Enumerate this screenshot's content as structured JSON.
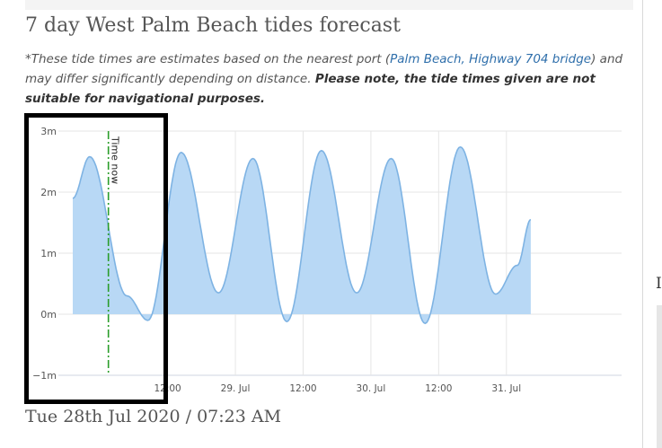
{
  "title": "7 day West Palm Beach tides forecast",
  "note": {
    "intro": "*These tide times are estimates based on the nearest port (",
    "link": "Palm Beach, Highway 704 bridge",
    "middle": ") and may differ significantly depending on distance. ",
    "warning": "Please note, the tide times given are not suitable for navigational purposes."
  },
  "colors": {
    "area_fill": "#b8d8f5",
    "area_line": "#7eb3e3",
    "now_line": "#2a9d2a",
    "grid": "#e6e6e6",
    "highlight_border": "#000000"
  },
  "chart_data": {
    "type": "area",
    "ylabel": "",
    "ylim": [
      -1,
      3
    ],
    "yticks": [
      {
        "value": 3,
        "label": "3m"
      },
      {
        "value": 2,
        "label": "2m"
      },
      {
        "value": 1,
        "label": "1m"
      },
      {
        "value": 0,
        "label": "0m"
      },
      {
        "value": -1,
        "label": "−1m"
      }
    ],
    "xlim": [
      -0.2,
      3.83
    ],
    "xticks": [
      {
        "value": 0.5,
        "label": "12:00"
      },
      {
        "value": 1.0,
        "label": "29. Jul"
      },
      {
        "value": 1.5,
        "label": "12:00"
      },
      {
        "value": 2.0,
        "label": "30. Jul"
      },
      {
        "value": 2.5,
        "label": "12:00"
      },
      {
        "value": 3.0,
        "label": "31. Jul"
      }
    ],
    "extremes": [
      [
        -0.2,
        1.9
      ],
      [
        -0.075,
        2.58
      ],
      [
        0.2,
        0.3
      ],
      [
        0.355,
        -0.1
      ],
      [
        0.6,
        2.65
      ],
      [
        0.875,
        0.35
      ],
      [
        1.13,
        2.55
      ],
      [
        1.38,
        -0.12
      ],
      [
        1.635,
        2.68
      ],
      [
        1.895,
        0.35
      ],
      [
        2.15,
        2.55
      ],
      [
        2.4,
        -0.15
      ],
      [
        2.66,
        2.74
      ],
      [
        2.92,
        0.33
      ],
      [
        3.08,
        0.8
      ],
      [
        3.18,
        1.55
      ]
    ],
    "time_now": {
      "x": 0.063,
      "label": "Time now"
    }
  },
  "date_line": "Tue 28th Jul 2020 / 07:23 AM"
}
